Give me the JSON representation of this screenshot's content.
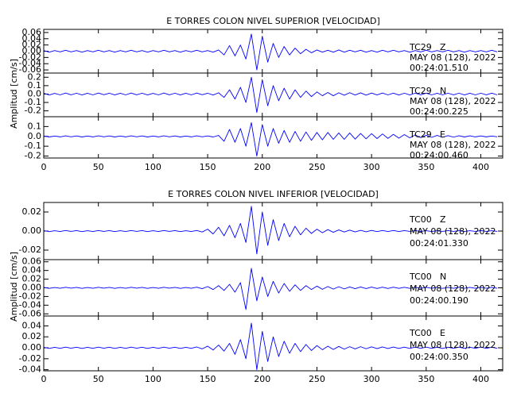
{
  "chart_data": [
    {
      "type": "line",
      "title": "E TORRES COLON NIVEL SUPERIOR [VELOCIDAD]",
      "ylabel": "Amplitud [cm/s]",
      "xlim": [
        0,
        420
      ],
      "xticks": [
        0,
        50,
        100,
        150,
        200,
        250,
        300,
        350,
        400
      ],
      "x": [
        0,
        5,
        10,
        15,
        20,
        25,
        30,
        35,
        40,
        45,
        50,
        55,
        60,
        65,
        70,
        75,
        80,
        85,
        90,
        95,
        100,
        105,
        110,
        115,
        120,
        125,
        130,
        135,
        140,
        145,
        150,
        155,
        160,
        165,
        170,
        175,
        180,
        185,
        190,
        195,
        200,
        205,
        210,
        215,
        220,
        225,
        230,
        235,
        240,
        245,
        250,
        255,
        260,
        265,
        270,
        275,
        280,
        285,
        290,
        295,
        300,
        305,
        310,
        315,
        320,
        325,
        330,
        335,
        340,
        345,
        350,
        355,
        360,
        365,
        370,
        375,
        380,
        385,
        390,
        395,
        400,
        405,
        410,
        415
      ],
      "panels": [
        {
          "station": "TC29",
          "component": "Z",
          "date": "MAY 08 (128), 2022",
          "time": "00:24:01.510",
          "color": "#0000ff",
          "ylim": [
            -0.07,
            0.07
          ],
          "yticks": [
            {
              "value": -0.06,
              "label": "-0.06"
            },
            {
              "value": -0.04,
              "label": "-0.04"
            },
            {
              "value": -0.02,
              "label": "-0.02"
            },
            {
              "value": 0,
              "label": "0.00"
            },
            0.02,
            0.04,
            0.06
          ],
          "values": [
            0.002,
            -0.003,
            0.002,
            -0.002,
            0.003,
            -0.002,
            0.002,
            -0.003,
            0.002,
            -0.002,
            0.003,
            -0.002,
            0.002,
            -0.003,
            0.002,
            -0.002,
            0.003,
            -0.002,
            0.002,
            -0.003,
            0.002,
            -0.002,
            0.003,
            -0.002,
            0.002,
            -0.003,
            0.002,
            -0.002,
            0.003,
            -0.002,
            0.002,
            -0.003,
            0.004,
            -0.012,
            0.018,
            -0.015,
            0.02,
            -0.025,
            0.055,
            -0.06,
            0.048,
            -0.035,
            0.025,
            -0.02,
            0.015,
            -0.012,
            0.01,
            -0.008,
            0.006,
            -0.005,
            0.004,
            -0.003,
            0.003,
            -0.003,
            0.004,
            -0.003,
            0.003,
            -0.002,
            0.003,
            -0.003,
            0.002,
            -0.003,
            0.003,
            -0.002,
            0.003,
            -0.002,
            0.002,
            -0.003,
            0.002,
            -0.002,
            0.003,
            -0.002,
            0.002,
            -0.002,
            0.003,
            -0.002,
            0.002,
            -0.003,
            0.002,
            -0.002,
            0.002,
            -0.002,
            0.003,
            -0.002
          ]
        },
        {
          "station": "TC29",
          "component": "N",
          "date": "MAY 08 (128), 2022",
          "time": "00:24:00.225",
          "color": "#0000ff",
          "ylim": [
            -0.27,
            0.25
          ],
          "yticks": [
            -0.2,
            -0.1,
            {
              "value": 0,
              "label": "0.0"
            },
            0.1,
            0.2
          ],
          "values": [
            0.01,
            -0.012,
            0.008,
            -0.01,
            0.012,
            -0.009,
            0.01,
            -0.011,
            0.009,
            -0.01,
            0.012,
            -0.008,
            0.01,
            -0.011,
            0.009,
            -0.01,
            0.012,
            -0.009,
            0.01,
            -0.011,
            0.008,
            -0.01,
            0.012,
            -0.009,
            0.01,
            -0.011,
            0.009,
            -0.01,
            0.012,
            -0.008,
            0.01,
            -0.012,
            0.015,
            -0.04,
            0.05,
            -0.06,
            0.08,
            -0.1,
            0.2,
            -0.22,
            0.17,
            -0.14,
            0.1,
            -0.08,
            0.07,
            -0.06,
            0.05,
            -0.04,
            0.035,
            -0.03,
            0.025,
            -0.02,
            0.018,
            -0.02,
            0.015,
            -0.014,
            0.016,
            -0.012,
            0.014,
            -0.013,
            0.012,
            -0.011,
            0.012,
            -0.01,
            0.011,
            -0.012,
            0.01,
            -0.011,
            0.01,
            -0.009,
            0.011,
            -0.01,
            0.009,
            -0.01,
            0.01,
            -0.009,
            0.01,
            -0.011,
            0.009,
            -0.01,
            0.01,
            -0.009,
            0.011,
            -0.01
          ]
        },
        {
          "station": "TC29",
          "component": "E",
          "date": "MAY 08 (128), 2022",
          "time": "00:24:00.460",
          "color": "#0000ff",
          "ylim": [
            -0.22,
            0.2
          ],
          "yticks": [
            -0.2,
            -0.1,
            {
              "value": 0,
              "label": "0.0"
            },
            0.1
          ],
          "values": [
            0.005,
            -0.006,
            0.004,
            -0.005,
            0.006,
            -0.004,
            0.005,
            -0.006,
            0.004,
            -0.005,
            0.006,
            -0.004,
            0.005,
            -0.006,
            0.004,
            -0.005,
            0.006,
            -0.004,
            0.005,
            -0.006,
            0.004,
            -0.005,
            0.006,
            -0.004,
            0.005,
            -0.006,
            0.004,
            -0.005,
            0.006,
            -0.004,
            0.005,
            -0.006,
            0.01,
            -0.05,
            0.07,
            -0.06,
            0.08,
            -0.1,
            0.14,
            -0.2,
            0.12,
            -0.1,
            0.08,
            -0.07,
            0.06,
            -0.06,
            0.05,
            -0.05,
            0.045,
            -0.04,
            0.04,
            -0.035,
            0.04,
            -0.03,
            0.035,
            -0.03,
            0.035,
            -0.028,
            0.03,
            -0.025,
            0.028,
            -0.022,
            0.025,
            -0.02,
            0.02,
            -0.018,
            0.018,
            -0.015,
            0.015,
            -0.013,
            0.012,
            -0.01,
            0.01,
            -0.009,
            0.008,
            -0.008,
            0.007,
            -0.006,
            0.006,
            -0.005,
            0.005,
            -0.005,
            0.004,
            -0.004
          ]
        }
      ]
    },
    {
      "type": "line",
      "title": "E TORRES COLON NIVEL INFERIOR [VELOCIDAD]",
      "ylabel": "Amplitud [cm/s]",
      "xlim": [
        0,
        420
      ],
      "xticks": [
        0,
        50,
        100,
        150,
        200,
        250,
        300,
        350,
        400
      ],
      "x": [
        0,
        5,
        10,
        15,
        20,
        25,
        30,
        35,
        40,
        45,
        50,
        55,
        60,
        65,
        70,
        75,
        80,
        85,
        90,
        95,
        100,
        105,
        110,
        115,
        120,
        125,
        130,
        135,
        140,
        145,
        150,
        155,
        160,
        165,
        170,
        175,
        180,
        185,
        190,
        195,
        200,
        205,
        210,
        215,
        220,
        225,
        230,
        235,
        240,
        245,
        250,
        255,
        260,
        265,
        270,
        275,
        280,
        285,
        290,
        295,
        300,
        305,
        310,
        315,
        320,
        325,
        330,
        335,
        340,
        345,
        350,
        355,
        360,
        365,
        370,
        375,
        380,
        385,
        390,
        395,
        400,
        405,
        410,
        415
      ],
      "panels": [
        {
          "station": "TC00",
          "component": "Z",
          "date": "MAY 08 (128), 2022",
          "time": "00:24:01.330",
          "color": "#0000ff",
          "ylim": [
            -0.03,
            0.03
          ],
          "yticks": [
            {
              "value": -0.02,
              "label": "-0.02"
            },
            {
              "value": 0,
              "label": "0.00"
            },
            0.02
          ],
          "values": [
            0.0005,
            -0.0006,
            0.0004,
            -0.0005,
            0.0006,
            -0.0004,
            0.0005,
            -0.0006,
            0.0004,
            -0.0005,
            0.0006,
            -0.0004,
            0.0005,
            -0.0006,
            0.0004,
            -0.0005,
            0.0006,
            -0.0004,
            0.0005,
            -0.0006,
            0.0004,
            -0.0005,
            0.0006,
            -0.0004,
            0.0005,
            -0.0006,
            0.0004,
            -0.0005,
            0.0006,
            -0.001,
            0.002,
            -0.003,
            0.004,
            -0.005,
            0.006,
            -0.007,
            0.008,
            -0.012,
            0.026,
            -0.024,
            0.02,
            -0.015,
            0.012,
            -0.01,
            0.008,
            -0.006,
            0.005,
            -0.004,
            0.003,
            -0.0025,
            0.002,
            -0.0018,
            0.0015,
            -0.0013,
            0.0012,
            -0.001,
            0.001,
            -0.0009,
            0.0008,
            -0.0008,
            0.0007,
            -0.0006,
            0.0006,
            -0.0005,
            0.0006,
            -0.0005,
            0.0005,
            -0.0004,
            0.0005,
            -0.0004,
            0.0004,
            -0.0005,
            0.0004,
            -0.0004,
            0.0005,
            -0.0004,
            0.0004,
            -0.0005,
            0.0004,
            -0.0004,
            0.0005,
            -0.0004,
            0.0004,
            -0.0004
          ]
        },
        {
          "station": "TC00",
          "component": "N",
          "date": "MAY 08 (128), 2022",
          "time": "00:24:00.190",
          "color": "#0000ff",
          "ylim": [
            -0.065,
            0.065
          ],
          "yticks": [
            -0.06,
            -0.04,
            -0.02,
            {
              "value": 0,
              "label": "0.00"
            },
            0.02,
            0.04,
            0.06
          ],
          "values": [
            0.001,
            -0.0012,
            0.0008,
            -0.001,
            0.0012,
            -0.0008,
            0.001,
            -0.0012,
            0.0008,
            -0.001,
            0.0012,
            -0.0008,
            0.001,
            -0.0012,
            0.0008,
            -0.001,
            0.0012,
            -0.0008,
            0.001,
            -0.0012,
            0.0008,
            -0.001,
            0.0012,
            -0.0008,
            0.001,
            -0.0012,
            0.0008,
            -0.001,
            0.0015,
            -0.002,
            0.003,
            -0.004,
            0.005,
            -0.006,
            0.008,
            -0.01,
            0.012,
            -0.05,
            0.045,
            -0.03,
            0.025,
            -0.02,
            0.015,
            -0.012,
            0.01,
            -0.008,
            0.007,
            -0.006,
            0.005,
            -0.004,
            0.004,
            -0.0035,
            0.003,
            -0.003,
            0.0025,
            -0.0025,
            0.002,
            -0.002,
            0.002,
            -0.0018,
            0.0018,
            -0.0015,
            0.0015,
            -0.0014,
            0.0014,
            -0.0012,
            0.0012,
            -0.0012,
            0.0012,
            -0.001,
            0.0012,
            -0.001,
            0.001,
            -0.0012,
            0.001,
            -0.001,
            0.0012,
            -0.001,
            0.001,
            -0.001,
            0.0012,
            -0.001,
            0.001,
            -0.001
          ]
        },
        {
          "station": "TC00",
          "component": "E",
          "date": "MAY 08 (128), 2022",
          "time": "00:24:00.350",
          "color": "#0000ff",
          "ylim": [
            -0.042,
            0.058
          ],
          "yticks": [
            -0.04,
            -0.02,
            {
              "value": 0,
              "label": "0.00"
            },
            0.02,
            0.04
          ],
          "values": [
            0.001,
            -0.0012,
            0.0008,
            -0.001,
            0.0012,
            -0.0008,
            0.001,
            -0.0012,
            0.0008,
            -0.001,
            0.0012,
            -0.0008,
            0.001,
            -0.0012,
            0.0008,
            -0.001,
            0.0012,
            -0.0008,
            0.001,
            -0.0012,
            0.0008,
            -0.001,
            0.0012,
            -0.0008,
            0.001,
            -0.0012,
            0.0008,
            -0.001,
            0.0015,
            -0.002,
            0.003,
            -0.004,
            0.005,
            -0.006,
            0.008,
            -0.012,
            0.015,
            -0.02,
            0.045,
            -0.04,
            0.03,
            -0.025,
            0.02,
            -0.016,
            0.012,
            -0.01,
            0.008,
            -0.007,
            0.006,
            -0.005,
            0.004,
            -0.0035,
            0.003,
            -0.003,
            0.0025,
            -0.0025,
            0.002,
            -0.002,
            0.002,
            -0.0018,
            0.0018,
            -0.0015,
            0.0015,
            -0.0014,
            0.0014,
            -0.0012,
            0.0012,
            -0.0012,
            0.0012,
            -0.001,
            0.0012,
            -0.001,
            0.001,
            -0.0012,
            0.001,
            -0.001,
            0.0012,
            -0.001,
            0.001,
            -0.001,
            0.0012,
            -0.001,
            0.001,
            -0.001
          ]
        }
      ]
    }
  ]
}
